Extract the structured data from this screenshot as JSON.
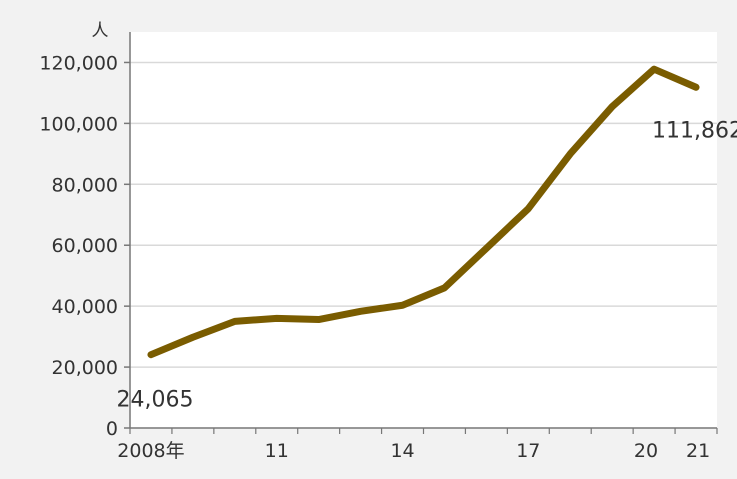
{
  "chart_data": {
    "type": "line",
    "title": "",
    "xlabel": "",
    "ylabel": "人",
    "x": [
      2008,
      2009,
      2010,
      2011,
      2012,
      2013,
      2014,
      2015,
      2016,
      2017,
      2018,
      2019,
      2020,
      2021
    ],
    "x_tick_labels": [
      {
        "x": 2008,
        "label": "2008年"
      },
      {
        "x": 2011,
        "label": "11"
      },
      {
        "x": 2014,
        "label": "14"
      },
      {
        "x": 2017,
        "label": "17"
      },
      {
        "x": 2020,
        "label": "20"
      },
      {
        "x": 2021,
        "label": "21"
      }
    ],
    "y_ticks": [
      0,
      20000,
      40000,
      60000,
      80000,
      100000,
      120000
    ],
    "y_tick_labels": [
      "0",
      "20,000",
      "40,000",
      "60,000",
      "80,000",
      "100,000",
      "120,000"
    ],
    "ylim": [
      0,
      130000
    ],
    "series": [
      {
        "values": [
          24065,
          29800,
          35000,
          36000,
          35600,
          38300,
          40300,
          46000,
          59000,
          72000,
          90000,
          105500,
          117800,
          111862
        ],
        "color": "#7a5c00"
      }
    ],
    "data_labels": [
      {
        "x": 2008,
        "text": "24,065"
      },
      {
        "x": 2021,
        "text": "111,862"
      }
    ],
    "grid": true,
    "gridline_color": "#d9d9d9",
    "plot_background": "#ffffff",
    "background": "#f2f2f2"
  }
}
